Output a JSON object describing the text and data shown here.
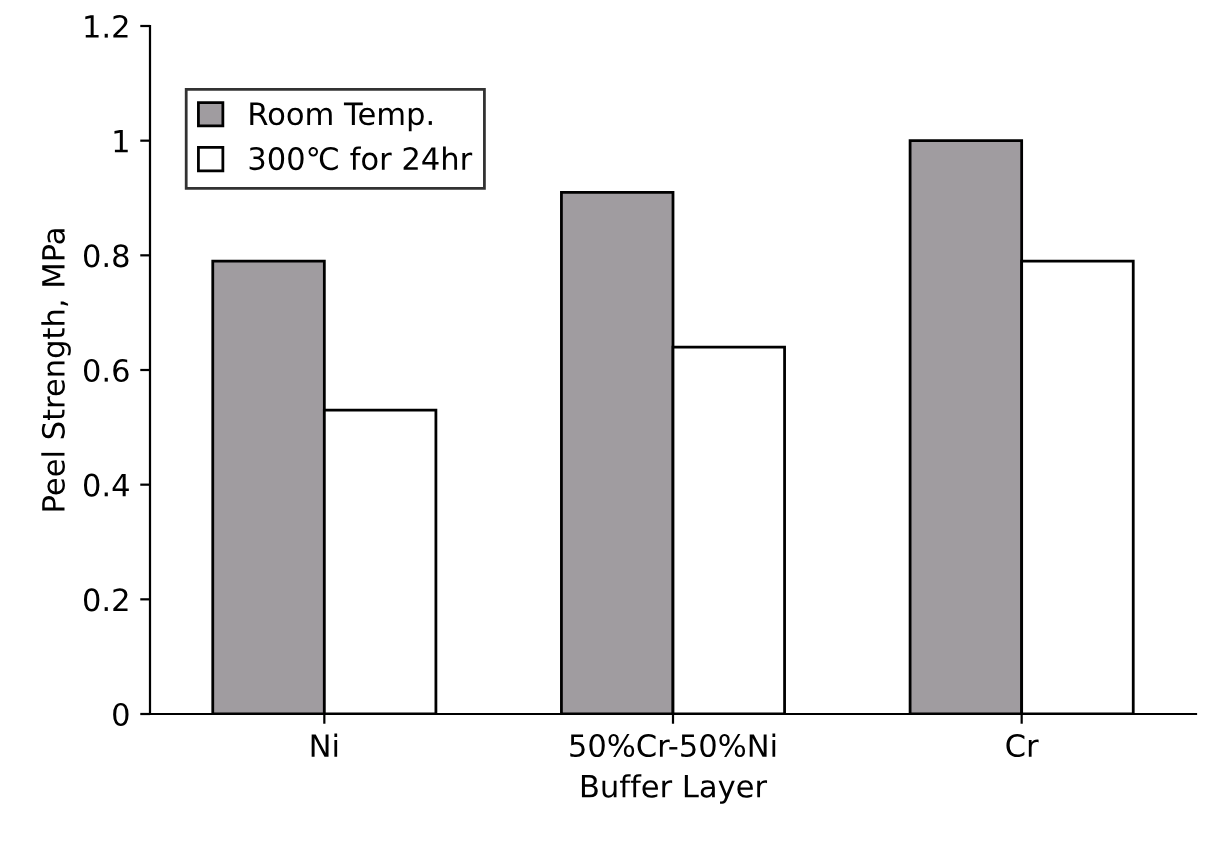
{
  "chart_data": {
    "type": "bar",
    "xlabel": "Buffer Layer",
    "ylabel": "Peel Strength, MPa",
    "categories": [
      "Ni",
      "50%Cr-50%Ni",
      "Cr"
    ],
    "series": [
      {
        "name": "Room Temp.",
        "color": "#a09ca0",
        "values": [
          0.79,
          0.91,
          1.0
        ]
      },
      {
        "name": "300℃ for 24hr",
        "color": "#ffffff",
        "values": [
          0.53,
          0.64,
          0.79
        ]
      }
    ],
    "ylim": [
      0,
      1.2
    ],
    "yticks": [
      0,
      0.2,
      0.4,
      0.6,
      0.8,
      1,
      1.2
    ],
    "grid": false,
    "legend": "top left"
  }
}
